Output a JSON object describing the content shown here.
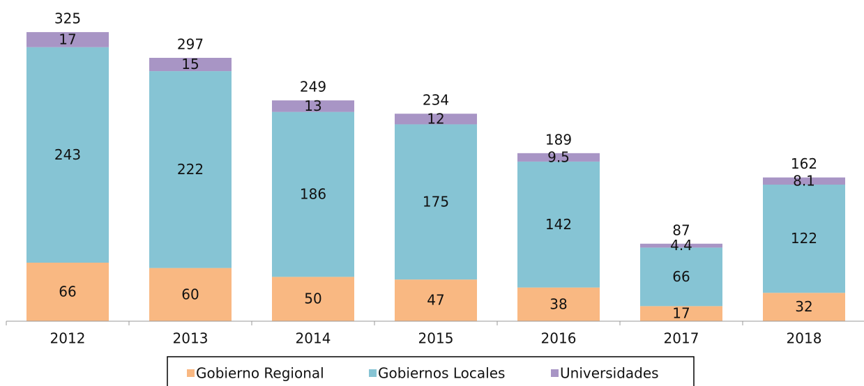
{
  "chart_data": {
    "type": "stacked_bar",
    "categories": [
      "2012",
      "2013",
      "2014",
      "2015",
      "2016",
      "2017",
      "2018"
    ],
    "series": [
      {
        "name": "Gobierno Regional",
        "color": "#f9b882",
        "values": [
          66,
          60,
          50,
          47,
          38,
          17,
          32
        ]
      },
      {
        "name": "Gobiernos Locales",
        "color": "#86c4d4",
        "values": [
          243,
          222,
          186,
          175,
          142,
          66,
          122
        ]
      },
      {
        "name": "Universidades",
        "color": "#a895c5",
        "values": [
          17,
          15,
          13,
          12,
          9.5,
          4.4,
          8.1
        ]
      }
    ],
    "totals": [
      325,
      297,
      249,
      234,
      189,
      87,
      162
    ],
    "ylim": [
      0,
      330
    ],
    "legend": "bottom"
  }
}
